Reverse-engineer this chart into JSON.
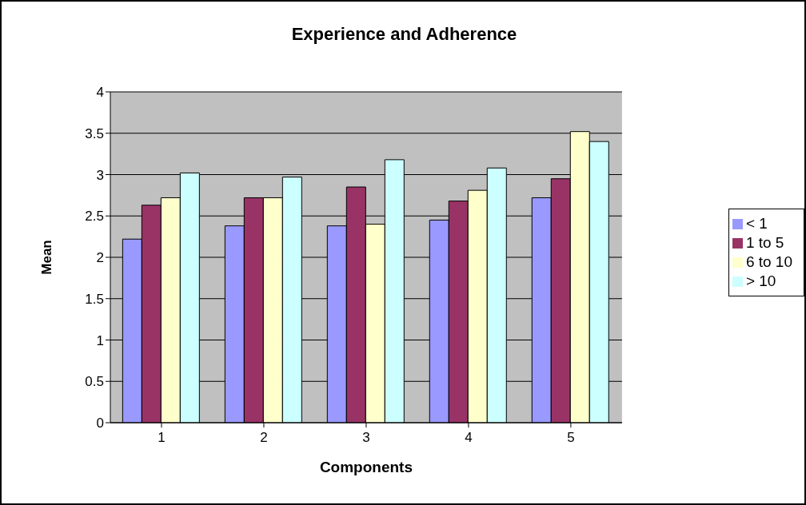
{
  "chart_data": {
    "type": "bar",
    "title": "Experience and Adherence",
    "xlabel": "Components",
    "ylabel": "Mean",
    "categories": [
      "1",
      "2",
      "3",
      "4",
      "5"
    ],
    "series": [
      {
        "name": "< 1",
        "color": "#9999ff",
        "values": [
          2.22,
          2.38,
          2.38,
          2.45,
          2.72
        ]
      },
      {
        "name": "1 to 5",
        "color": "#993366",
        "values": [
          2.63,
          2.72,
          2.85,
          2.68,
          2.95
        ]
      },
      {
        "name": "6 to 10",
        "color": "#ffffcc",
        "values": [
          2.72,
          2.72,
          2.4,
          2.81,
          3.52
        ]
      },
      {
        "name": "> 10",
        "color": "#ccffff",
        "values": [
          3.02,
          2.97,
          3.18,
          3.08,
          3.4
        ]
      }
    ],
    "ylim": [
      0,
      4
    ],
    "yticks": [
      0,
      0.5,
      1,
      1.5,
      2,
      2.5,
      3,
      3.5,
      4
    ],
    "grid": "y",
    "legend": "right"
  }
}
